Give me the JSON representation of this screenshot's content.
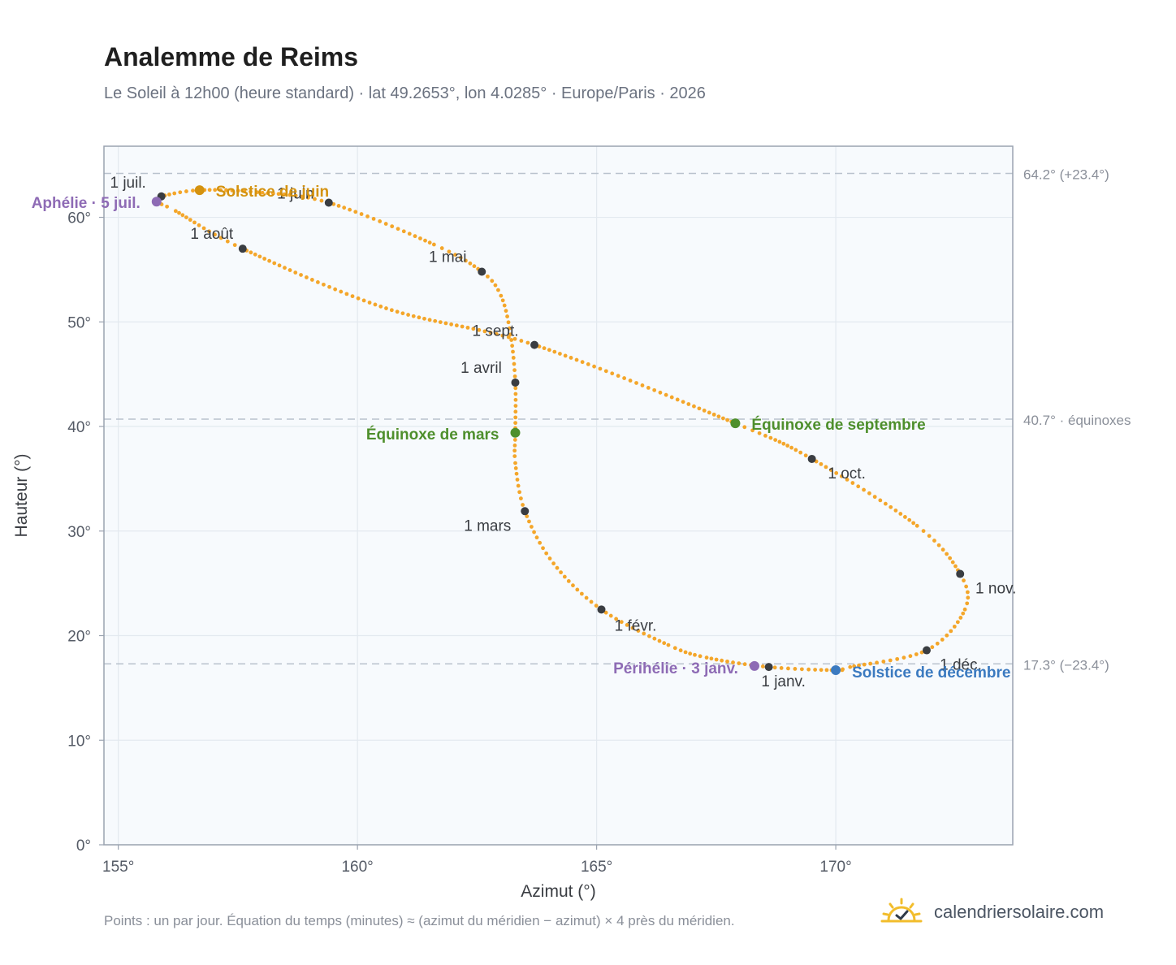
{
  "title": "Analemme de Reims",
  "subtitle": "Le Soleil à 12h00 (heure standard) · lat 49.2653°, lon 4.0285° · Europe/Paris · 2026",
  "footnote": "Points : un par jour. Équation du temps (minutes) ≈ (azimut du méridien − azimut) × 4 près du méridien.",
  "brand": {
    "text": "calendriersolaire.com",
    "logo_icon": "sun-check-icon"
  },
  "colors": {
    "curve": "#f4a62a",
    "month_marker": "#3a3d42",
    "solstice_june": "#d4920f",
    "solstice_december": "#3b7ac0",
    "equinox": "#4e8f2c",
    "apsis": "#8e6bb5",
    "plot_bg": "#f7fafd",
    "grid": "#e3e9ef",
    "frame": "#9aa3b0",
    "reference_line": "#b9c2cd"
  },
  "chart_data": {
    "type": "scatter",
    "xlabel": "Azimut (°)",
    "ylabel": "Hauteur (°)",
    "xlim": [
      154.7,
      173.7
    ],
    "ylim": [
      0,
      66.8
    ],
    "x_ticks": [
      {
        "value": 155,
        "label": "155°"
      },
      {
        "value": 160,
        "label": "160°"
      },
      {
        "value": 165,
        "label": "165°"
      },
      {
        "value": 170,
        "label": "170°"
      }
    ],
    "y_ticks": [
      {
        "value": 0,
        "label": "0°"
      },
      {
        "value": 10,
        "label": "10°"
      },
      {
        "value": 20,
        "label": "20°"
      },
      {
        "value": 30,
        "label": "30°"
      },
      {
        "value": 40,
        "label": "40°"
      },
      {
        "value": 50,
        "label": "50°"
      },
      {
        "value": 60,
        "label": "60°"
      }
    ],
    "grid": true,
    "reference_lines": [
      {
        "y": 64.2,
        "label": "64.2° (+23.4°)"
      },
      {
        "y": 40.7,
        "label": "40.7° · équinoxes"
      },
      {
        "y": 17.3,
        "label": "17.3° (−23.4°)"
      }
    ],
    "path_points": [
      {
        "x": 168.6,
        "y": 17.0
      },
      {
        "x": 167.3,
        "y": 17.9
      },
      {
        "x": 166.5,
        "y": 19.1
      },
      {
        "x": 165.1,
        "y": 22.5
      },
      {
        "x": 164.1,
        "y": 26.9
      },
      {
        "x": 163.5,
        "y": 31.9
      },
      {
        "x": 163.3,
        "y": 36.5
      },
      {
        "x": 163.3,
        "y": 39.4
      },
      {
        "x": 163.3,
        "y": 44.2
      },
      {
        "x": 163.2,
        "y": 48.8
      },
      {
        "x": 163.0,
        "y": 52.5
      },
      {
        "x": 162.6,
        "y": 54.8
      },
      {
        "x": 161.6,
        "y": 57.4
      },
      {
        "x": 159.4,
        "y": 61.4
      },
      {
        "x": 157.9,
        "y": 62.4
      },
      {
        "x": 156.7,
        "y": 62.6
      },
      {
        "x": 155.9,
        "y": 62.0
      },
      {
        "x": 155.8,
        "y": 61.5
      },
      {
        "x": 156.2,
        "y": 60.6
      },
      {
        "x": 157.6,
        "y": 57.0
      },
      {
        "x": 160.6,
        "y": 51.3
      },
      {
        "x": 163.7,
        "y": 47.8
      },
      {
        "x": 167.9,
        "y": 40.3
      },
      {
        "x": 169.5,
        "y": 36.9
      },
      {
        "x": 171.7,
        "y": 30.5
      },
      {
        "x": 172.6,
        "y": 25.9
      },
      {
        "x": 172.7,
        "y": 22.5
      },
      {
        "x": 171.9,
        "y": 18.6
      },
      {
        "x": 170.3,
        "y": 17.0
      },
      {
        "x": 170.0,
        "y": 16.7
      },
      {
        "x": 168.6,
        "y": 17.0
      }
    ],
    "month_markers": [
      {
        "label": "1 janv.",
        "x": 168.6,
        "y": 17.0
      },
      {
        "label": "1 févr.",
        "x": 165.1,
        "y": 22.5
      },
      {
        "label": "1 mars",
        "x": 163.5,
        "y": 31.9
      },
      {
        "label": "1 avril",
        "x": 163.3,
        "y": 44.2
      },
      {
        "label": "1 mai",
        "x": 162.6,
        "y": 54.8
      },
      {
        "label": "1 juin",
        "x": 159.4,
        "y": 61.4
      },
      {
        "label": "1 juil.",
        "x": 155.9,
        "y": 62.0
      },
      {
        "label": "1 août",
        "x": 157.6,
        "y": 57.0
      },
      {
        "label": "1 sept.",
        "x": 163.7,
        "y": 47.8
      },
      {
        "label": "1 oct.",
        "x": 169.5,
        "y": 36.9
      },
      {
        "label": "1 nov.",
        "x": 172.6,
        "y": 25.9
      },
      {
        "label": "1 déc.",
        "x": 171.9,
        "y": 18.6
      }
    ],
    "events": [
      {
        "label": "Solstice de juin",
        "x": 156.7,
        "y": 62.6,
        "kind": "solstice_june"
      },
      {
        "label": "Solstice de décembre",
        "x": 170.0,
        "y": 16.7,
        "kind": "solstice_december"
      },
      {
        "label": "Équinoxe de mars",
        "x": 163.3,
        "y": 39.4,
        "kind": "equinox"
      },
      {
        "label": "Équinoxe de septembre",
        "x": 167.9,
        "y": 40.3,
        "kind": "equinox"
      },
      {
        "label": "Aphélie · 5 juil.",
        "x": 155.8,
        "y": 61.5,
        "kind": "apsis"
      },
      {
        "label": "Périhélie · 3 janv.",
        "x": 168.3,
        "y": 17.1,
        "kind": "apsis"
      }
    ]
  }
}
